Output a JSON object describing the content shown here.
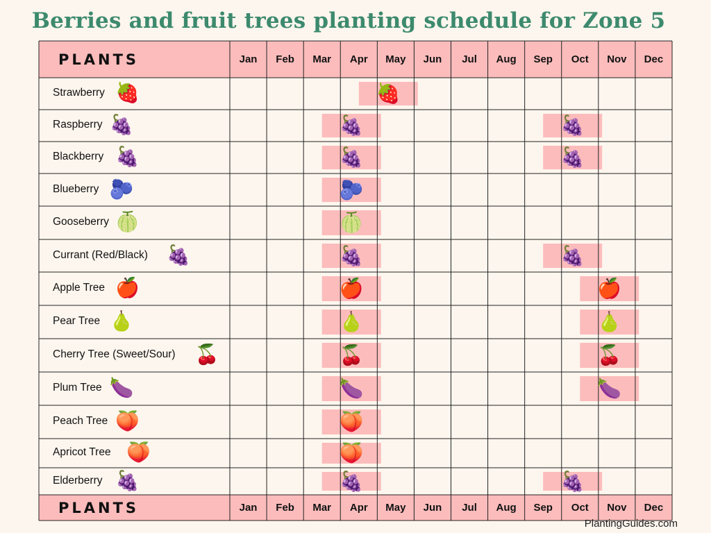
{
  "title": "Berries and fruit trees planting schedule for Zone 5",
  "header": {
    "plants_label": "PLANTS",
    "months": [
      "Jan",
      "Feb",
      "Mar",
      "Apr",
      "May",
      "Jun",
      "Jul",
      "Aug",
      "Sep",
      "Oct",
      "Nov",
      "Dec"
    ]
  },
  "footer_header": {
    "plants_label": "PLANTS",
    "months": [
      "Jan",
      "Feb",
      "Mar",
      "Apr",
      "May",
      "Jun",
      "Jul",
      "Aug",
      "Sep",
      "Oct",
      "Nov",
      "Dec"
    ]
  },
  "colors": {
    "highlight": "#fcbcbc",
    "title": "#3d8a6e",
    "background": "#fdf6ee"
  },
  "chart_data": {
    "type": "table",
    "rows": [
      {
        "name": "Strawberry",
        "icon": "strawberry-icon",
        "glyph": "🍓",
        "windows": [
          [
            "Apr",
            "May"
          ]
        ]
      },
      {
        "name": "Raspberry",
        "icon": "raspberry-icon",
        "glyph": "🍇",
        "windows": [
          [
            "Mar",
            "Apr"
          ],
          [
            "Sep",
            "Oct"
          ]
        ]
      },
      {
        "name": "Blackberry",
        "icon": "blackberry-icon",
        "glyph": "🍇",
        "windows": [
          [
            "Mar",
            "Apr"
          ],
          [
            "Sep",
            "Oct"
          ]
        ]
      },
      {
        "name": "Blueberry",
        "icon": "blueberry-icon",
        "glyph": "🫐",
        "windows": [
          [
            "Mar",
            "Apr"
          ]
        ]
      },
      {
        "name": "Gooseberry",
        "icon": "gooseberry-icon",
        "glyph": "🍈",
        "windows": [
          [
            "Mar",
            "Apr"
          ]
        ]
      },
      {
        "name": "Currant (Red/Black)",
        "icon": "currant-icon",
        "glyph": "🍇",
        "windows": [
          [
            "Mar",
            "Apr"
          ],
          [
            "Sep",
            "Oct"
          ]
        ]
      },
      {
        "name": "Apple Tree",
        "icon": "apple-icon",
        "glyph": "🍎",
        "windows": [
          [
            "Oct",
            "Nov"
          ],
          [
            "Mar",
            "Apr"
          ]
        ]
      },
      {
        "name": "Pear Tree",
        "icon": "pear-icon",
        "glyph": "🍐",
        "windows": [
          [
            "Mar",
            "Apr"
          ],
          [
            "Oct",
            "Nov"
          ]
        ]
      },
      {
        "name": "Cherry Tree (Sweet/Sour)",
        "icon": "cherry-icon",
        "glyph": "🍒",
        "windows": [
          [
            "Mar",
            "Apr"
          ],
          [
            "Oct",
            "Nov"
          ]
        ]
      },
      {
        "name": "Plum Tree",
        "icon": "plum-icon",
        "glyph": "🍆",
        "windows": [
          [
            "Mar",
            "Apr"
          ],
          [
            "Oct",
            "Nov"
          ]
        ]
      },
      {
        "name": "Peach Tree",
        "icon": "peach-icon",
        "glyph": "🍑",
        "windows": [
          [
            "Mar",
            "Apr"
          ]
        ]
      },
      {
        "name": "Apricot Tree",
        "icon": "apricot-icon",
        "glyph": "🍑",
        "windows": [
          [
            "Mar",
            "Apr"
          ]
        ]
      },
      {
        "name": "Elderberry",
        "icon": "elderberry-icon",
        "glyph": "🍇",
        "windows": [
          [
            "Mar",
            "Apr"
          ],
          [
            "Sep",
            "Oct"
          ]
        ]
      }
    ]
  },
  "footer": {
    "site": "PlantingGuides.com"
  }
}
